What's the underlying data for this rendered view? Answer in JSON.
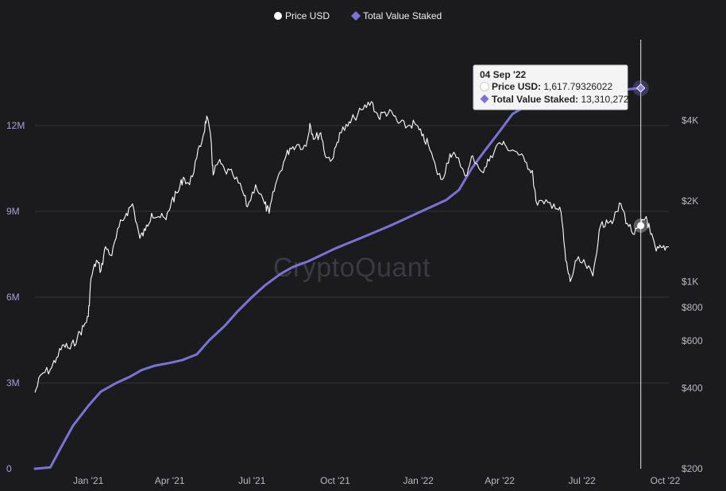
{
  "chart_data": {
    "type": "line",
    "legend": {
      "placement": "top-center",
      "items": [
        {
          "name": "Price USD",
          "color": "#ffffff",
          "marker": "circle"
        },
        {
          "name": "Total Value Staked",
          "color": "#7b72d6",
          "marker": "diamond"
        }
      ]
    },
    "watermark": "CryptoQuant",
    "x_ticks": [
      "Jan '21",
      "Apr '21",
      "Jul '21",
      "Oct '21",
      "Jan '22",
      "Apr '22",
      "Jul '22",
      "Oct '22"
    ],
    "x_range": [
      "2020-11-03",
      "2022-10-05"
    ],
    "y_left": {
      "ticks": [
        "0",
        "3M",
        "6M",
        "9M",
        "12M"
      ],
      "range": [
        0,
        15000000
      ]
    },
    "y_right": {
      "scale": "log",
      "ticks": [
        "$200",
        "$400",
        "$600",
        "$800",
        "$1K",
        "$2K",
        "$4K"
      ],
      "range": [
        200,
        8000
      ]
    },
    "series": [
      {
        "name": "Total Value Staked",
        "axis": "left",
        "color": "#7b72d6",
        "points": [
          [
            "2020-11-03",
            0
          ],
          [
            "2020-11-20",
            50000
          ],
          [
            "2020-12-01",
            700000
          ],
          [
            "2020-12-15",
            1500000
          ],
          [
            "2021-01-01",
            2200000
          ],
          [
            "2021-01-15",
            2700000
          ],
          [
            "2021-02-01",
            3000000
          ],
          [
            "2021-02-15",
            3200000
          ],
          [
            "2021-03-01",
            3450000
          ],
          [
            "2021-03-15",
            3600000
          ],
          [
            "2021-04-01",
            3700000
          ],
          [
            "2021-04-15",
            3800000
          ],
          [
            "2021-05-01",
            4000000
          ],
          [
            "2021-05-15",
            4500000
          ],
          [
            "2021-06-01",
            5000000
          ],
          [
            "2021-06-15",
            5500000
          ],
          [
            "2021-07-01",
            6000000
          ],
          [
            "2021-07-15",
            6400000
          ],
          [
            "2021-08-01",
            6800000
          ],
          [
            "2021-08-15",
            7050000
          ],
          [
            "2021-09-01",
            7250000
          ],
          [
            "2021-10-01",
            7700000
          ],
          [
            "2021-11-01",
            8100000
          ],
          [
            "2021-12-01",
            8500000
          ],
          [
            "2022-01-01",
            8950000
          ],
          [
            "2022-02-01",
            9400000
          ],
          [
            "2022-02-15",
            9750000
          ],
          [
            "2022-03-01",
            10500000
          ],
          [
            "2022-03-15",
            11100000
          ],
          [
            "2022-04-01",
            11800000
          ],
          [
            "2022-04-15",
            12400000
          ],
          [
            "2022-05-01",
            12700000
          ],
          [
            "2022-05-15",
            12850000
          ],
          [
            "2022-06-01",
            12950000
          ],
          [
            "2022-07-01",
            13050000
          ],
          [
            "2022-08-01",
            13200000
          ],
          [
            "2022-09-04",
            13310272
          ]
        ]
      },
      {
        "name": "Price USD",
        "axis": "right",
        "color": "#ffffff",
        "points": [
          [
            "2020-11-03",
            385
          ],
          [
            "2020-11-10",
            450
          ],
          [
            "2020-11-20",
            470
          ],
          [
            "2020-11-27",
            520
          ],
          [
            "2020-12-05",
            580
          ],
          [
            "2020-12-12",
            560
          ],
          [
            "2020-12-20",
            620
          ],
          [
            "2020-12-27",
            680
          ],
          [
            "2021-01-01",
            740
          ],
          [
            "2021-01-04",
            1030
          ],
          [
            "2021-01-10",
            1200
          ],
          [
            "2021-01-15",
            1100
          ],
          [
            "2021-01-20",
            1350
          ],
          [
            "2021-01-27",
            1250
          ],
          [
            "2021-02-04",
            1600
          ],
          [
            "2021-02-12",
            1800
          ],
          [
            "2021-02-19",
            1950
          ],
          [
            "2021-02-27",
            1450
          ],
          [
            "2021-03-05",
            1550
          ],
          [
            "2021-03-12",
            1800
          ],
          [
            "2021-03-20",
            1750
          ],
          [
            "2021-03-28",
            1700
          ],
          [
            "2021-04-03",
            2000
          ],
          [
            "2021-04-10",
            2150
          ],
          [
            "2021-04-16",
            2450
          ],
          [
            "2021-04-23",
            2300
          ],
          [
            "2021-05-01",
            2900
          ],
          [
            "2021-05-08",
            3500
          ],
          [
            "2021-05-12",
            4150
          ],
          [
            "2021-05-17",
            3300
          ],
          [
            "2021-05-19",
            2500
          ],
          [
            "2021-05-25",
            2800
          ],
          [
            "2021-06-01",
            2600
          ],
          [
            "2021-06-10",
            2500
          ],
          [
            "2021-06-20",
            2200
          ],
          [
            "2021-06-26",
            1900
          ],
          [
            "2021-07-05",
            2300
          ],
          [
            "2021-07-15",
            1950
          ],
          [
            "2021-07-20",
            1800
          ],
          [
            "2021-07-27",
            2300
          ],
          [
            "2021-08-05",
            2800
          ],
          [
            "2021-08-12",
            3150
          ],
          [
            "2021-08-20",
            3250
          ],
          [
            "2021-08-30",
            3200
          ],
          [
            "2021-09-03",
            3900
          ],
          [
            "2021-09-08",
            3400
          ],
          [
            "2021-09-15",
            3600
          ],
          [
            "2021-09-21",
            2900
          ],
          [
            "2021-09-29",
            2900
          ],
          [
            "2021-10-06",
            3600
          ],
          [
            "2021-10-15",
            3800
          ],
          [
            "2021-10-22",
            4100
          ],
          [
            "2021-11-01",
            4400
          ],
          [
            "2021-11-10",
            4700
          ],
          [
            "2021-11-18",
            4100
          ],
          [
            "2021-11-25",
            4300
          ],
          [
            "2021-12-04",
            4200
          ],
          [
            "2021-12-10",
            3900
          ],
          [
            "2021-12-20",
            3800
          ],
          [
            "2021-12-28",
            3900
          ],
          [
            "2022-01-05",
            3500
          ],
          [
            "2022-01-12",
            3250
          ],
          [
            "2022-01-21",
            2600
          ],
          [
            "2022-01-27",
            2400
          ],
          [
            "2022-02-05",
            3000
          ],
          [
            "2022-02-12",
            2900
          ],
          [
            "2022-02-24",
            2500
          ],
          [
            "2022-03-02",
            2950
          ],
          [
            "2022-03-14",
            2550
          ],
          [
            "2022-03-22",
            2950
          ],
          [
            "2022-04-01",
            3300
          ],
          [
            "2022-04-08",
            3200
          ],
          [
            "2022-04-20",
            3050
          ],
          [
            "2022-04-29",
            2800
          ],
          [
            "2022-05-07",
            2600
          ],
          [
            "2022-05-11",
            2000
          ],
          [
            "2022-05-20",
            1950
          ],
          [
            "2022-05-31",
            1950
          ],
          [
            "2022-06-08",
            1800
          ],
          [
            "2022-06-13",
            1200
          ],
          [
            "2022-06-18",
            1000
          ],
          [
            "2022-06-25",
            1200
          ],
          [
            "2022-07-05",
            1150
          ],
          [
            "2022-07-13",
            1050
          ],
          [
            "2022-07-20",
            1550
          ],
          [
            "2022-07-28",
            1700
          ],
          [
            "2022-08-05",
            1700
          ],
          [
            "2022-08-13",
            1950
          ],
          [
            "2022-08-20",
            1650
          ],
          [
            "2022-08-28",
            1500
          ],
          [
            "2022-09-04",
            1617.79
          ],
          [
            "2022-09-10",
            1750
          ],
          [
            "2022-09-15",
            1500
          ],
          [
            "2022-09-21",
            1300
          ],
          [
            "2022-09-28",
            1340
          ],
          [
            "2022-10-05",
            1350
          ]
        ]
      }
    ],
    "crosshair": {
      "date": "2022-09-04"
    },
    "tooltip": {
      "date_label": "04 Sep '22",
      "price_key": "Price USD",
      "price_value": "1,617.79326022",
      "staked_key": "Total Value Staked",
      "staked_value": "13,310,272"
    }
  }
}
